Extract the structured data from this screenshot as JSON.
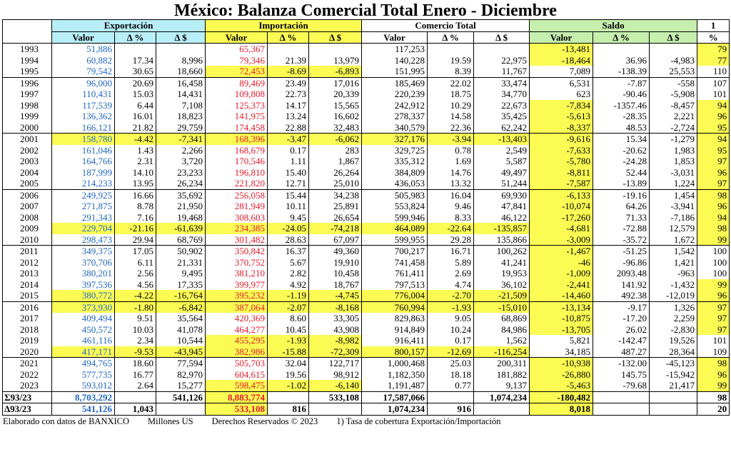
{
  "title": "México: Balanza Comercial Total Enero - Diciembre",
  "groups": [
    "Exportación",
    "Importación",
    "Comercio Total",
    "Saldo",
    "1"
  ],
  "subheaders": [
    "Valor",
    "Δ %",
    "Δ $",
    "Valor",
    "Δ %",
    "Δ $",
    "Valor",
    "Δ %",
    "Δ $",
    "Valor",
    "Δ %",
    "Δ $",
    "%"
  ],
  "rows": [
    [
      "1993",
      "51,886",
      null,
      null,
      "65,367",
      null,
      null,
      "117,253",
      null,
      null,
      "-13,481",
      null,
      null,
      "79"
    ],
    [
      "1994",
      "60,882",
      "17.34",
      "8,996",
      "79,346",
      "21.39",
      "13,979",
      "140,228",
      "19.59",
      "22,975",
      "-18,464",
      "36.96",
      "-4,983",
      "77"
    ],
    [
      "1995",
      "79,542",
      "30.65",
      "18,660",
      "72,453",
      "-8.69",
      "-6,893",
      "151,995",
      "8.39",
      "11,767",
      "7,089",
      "-138.39",
      "25,553",
      "110"
    ],
    [
      "1996",
      "96,000",
      "20.69",
      "16,458",
      "89,469",
      "23.49",
      "17,016",
      "185,469",
      "22.02",
      "33,474",
      "6,531",
      "-7.87",
      "-558",
      "107"
    ],
    [
      "1997",
      "110,431",
      "15.03",
      "14,431",
      "109,808",
      "22.73",
      "20,339",
      "220,239",
      "18.75",
      "34,770",
      "623",
      "-90.46",
      "-5,908",
      "101"
    ],
    [
      "1998",
      "117,539",
      "6.44",
      "7,108",
      "125,373",
      "14.17",
      "15,565",
      "242,912",
      "10.29",
      "22,673",
      "-7,834",
      "-1357.46",
      "-8,457",
      "94"
    ],
    [
      "1999",
      "136,362",
      "16.01",
      "18,823",
      "141,975",
      "13.24",
      "16,602",
      "278,337",
      "14.58",
      "35,425",
      "-5,613",
      "-28.35",
      "2,221",
      "96"
    ],
    [
      "2000",
      "166,121",
      "21.82",
      "29,759",
      "174,458",
      "22.88",
      "32,483",
      "340,579",
      "22.36",
      "62,242",
      "-8,337",
      "48.53",
      "-2,724",
      "95"
    ],
    [
      "2001",
      "158,780",
      "-4.42",
      "-7,341",
      "168,396",
      "-3.47",
      "-6,062",
      "327,176",
      "-3.94",
      "-13,403",
      "-9,616",
      "15.34",
      "-1,279",
      "94"
    ],
    [
      "2002",
      "161,046",
      "1.43",
      "2,266",
      "168,679",
      "0.17",
      "283",
      "329,725",
      "0.78",
      "2,549",
      "-7,633",
      "-20.62",
      "1,983",
      "95"
    ],
    [
      "2003",
      "164,766",
      "2.31",
      "3,720",
      "170,546",
      "1.11",
      "1,867",
      "335,312",
      "1.69",
      "5,587",
      "-5,780",
      "-24.28",
      "1,853",
      "97"
    ],
    [
      "2004",
      "187,999",
      "14.10",
      "23,233",
      "196,810",
      "15.40",
      "26,264",
      "384,809",
      "14.76",
      "49,497",
      "-8,811",
      "52.44",
      "-3,031",
      "96"
    ],
    [
      "2005",
      "214,233",
      "13.95",
      "26,234",
      "221,820",
      "12.71",
      "25,010",
      "436,053",
      "13.32",
      "51,244",
      "-7,587",
      "-13.89",
      "1,224",
      "97"
    ],
    [
      "2006",
      "249,925",
      "16.66",
      "35,692",
      "256,058",
      "15.44",
      "34,238",
      "505,983",
      "16.04",
      "69,930",
      "-6,133",
      "-19.16",
      "1,454",
      "98"
    ],
    [
      "2007",
      "271,875",
      "8.78",
      "21,950",
      "281,949",
      "10.11",
      "25,891",
      "553,824",
      "9.46",
      "47,841",
      "-10,074",
      "64.26",
      "-3,941",
      "96"
    ],
    [
      "2008",
      "291,343",
      "7.16",
      "19,468",
      "308,603",
      "9.45",
      "26,654",
      "599,946",
      "8.33",
      "46,122",
      "-17,260",
      "71.33",
      "-7,186",
      "94"
    ],
    [
      "2009",
      "229,704",
      "-21.16",
      "-61,639",
      "234,385",
      "-24.05",
      "-74,218",
      "464,089",
      "-22.64",
      "-135,857",
      "-4,681",
      "-72.88",
      "12,579",
      "98"
    ],
    [
      "2010",
      "298,473",
      "29.94",
      "68,769",
      "301,482",
      "28.63",
      "67,097",
      "599,955",
      "29.28",
      "135,866",
      "-3,009",
      "-35.72",
      "1,672",
      "99"
    ],
    [
      "2011",
      "349,375",
      "17.05",
      "50,902",
      "350,842",
      "16.37",
      "49,360",
      "700,217",
      "16.71",
      "100,262",
      "-1,467",
      "-51.25",
      "1,542",
      "100"
    ],
    [
      "2012",
      "370,706",
      "6.11",
      "21,331",
      "370,752",
      "5.67",
      "19,910",
      "741,458",
      "5.89",
      "41,241",
      "-46",
      "-96.86",
      "1,421",
      "100"
    ],
    [
      "2013",
      "380,201",
      "2.56",
      "9,495",
      "381,210",
      "2.82",
      "10,458",
      "761,411",
      "2.69",
      "19,953",
      "-1,009",
      "2093.48",
      "-963",
      "100"
    ],
    [
      "2014",
      "397,536",
      "4.56",
      "17,335",
      "399,977",
      "4.92",
      "18,767",
      "797,513",
      "4.74",
      "36,102",
      "-2,441",
      "141.92",
      "-1,432",
      "99"
    ],
    [
      "2015",
      "380,772",
      "-4.22",
      "-16,764",
      "395,232",
      "-1.19",
      "-4,745",
      "776,004",
      "-2.70",
      "-21,509",
      "-14,460",
      "492.38",
      "-12,019",
      "96"
    ],
    [
      "2016",
      "373,930",
      "-1.80",
      "-6,842",
      "387,064",
      "-2.07",
      "-8,168",
      "760,994",
      "-1.93",
      "-15,010",
      "-13,134",
      "-9.17",
      "1,326",
      "97"
    ],
    [
      "2017",
      "409,494",
      "9.51",
      "35,564",
      "420,369",
      "8.60",
      "33,305",
      "829,863",
      "9.05",
      "68,869",
      "-10,875",
      "-17.20",
      "2,259",
      "97"
    ],
    [
      "2018",
      "450,572",
      "10.03",
      "41,078",
      "464,277",
      "10.45",
      "43,908",
      "914,849",
      "10.24",
      "84,986",
      "-13,705",
      "26.02",
      "-2,830",
      "97"
    ],
    [
      "2019",
      "461,116",
      "2.34",
      "10,544",
      "455,295",
      "-1.93",
      "-8,982",
      "916,411",
      "0.17",
      "1,562",
      "5,821",
      "-142.47",
      "19,526",
      "101"
    ],
    [
      "2020",
      "417,171",
      "-9.53",
      "-43,945",
      "382,986",
      "-15.88",
      "-72,309",
      "800,157",
      "-12.69",
      "-116,254",
      "34,185",
      "487.27",
      "28,364",
      "109"
    ],
    [
      "2021",
      "494,765",
      "18.60",
      "77,594",
      "505,703",
      "32.04",
      "122,717",
      "1,000,468",
      "25.03",
      "200,311",
      "-10,938",
      "-132.00",
      "-45,123",
      "98"
    ],
    [
      "2022",
      "577,735",
      "16.77",
      "82,970",
      "604,615",
      "19.56",
      "98,912",
      "1,182,350",
      "18.18",
      "181,882",
      "-26,880",
      "145.75",
      "-15,942",
      "96"
    ],
    [
      "2023",
      "593,012",
      "2.64",
      "15,277",
      "598,475",
      "-1.02",
      "-6,140",
      "1,191,487",
      "0.77",
      "9,137",
      "-5,463",
      "-79.68",
      "21,417",
      "99"
    ]
  ],
  "summary": [
    [
      "Σ93/23",
      "8,703,292",
      null,
      "541,126",
      "8,883,774",
      null,
      "533,108",
      "17,587,066",
      null,
      "1,074,234",
      "-180,482",
      null,
      null,
      "98"
    ],
    [
      "Δ93/23",
      "541,126",
      "1,043",
      null,
      "533,108",
      "816",
      null,
      "1,074,234",
      "916",
      null,
      "8,018",
      null,
      null,
      "20"
    ]
  ],
  "footer": [
    "Elaborado con datos de BANXICO",
    "Millones US",
    "Derechos Reservados © 2023",
    "1) Tasa de cobertura Exportación/Importación"
  ]
}
